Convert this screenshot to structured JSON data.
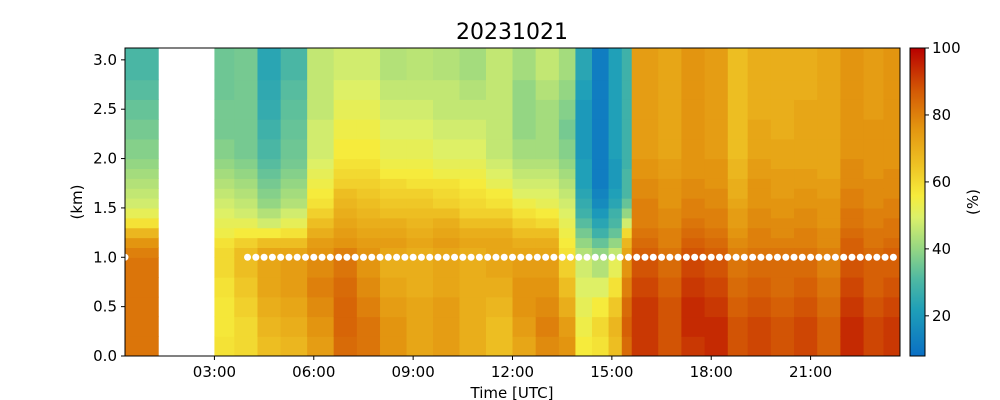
{
  "chart_data": {
    "type": "heatmap",
    "title": "20231021",
    "xlabel": "Time [UTC]",
    "ylabel": "(km)",
    "colorbar_label": "(%)",
    "x_ticks": [
      "03:00",
      "06:00",
      "09:00",
      "12:00",
      "15:00",
      "18:00",
      "21:00"
    ],
    "x_tick_hours": [
      3,
      6,
      9,
      12,
      15,
      18,
      21
    ],
    "y_ticks": [
      "0.0",
      "0.5",
      "1.0",
      "1.5",
      "2.0",
      "2.5",
      "3.0"
    ],
    "y_tick_values": [
      0,
      0.5,
      1.0,
      1.5,
      2.0,
      2.5,
      3.0
    ],
    "colorbar_ticks": [
      "20",
      "40",
      "60",
      "80",
      "100"
    ],
    "colorbar_tick_values": [
      20,
      40,
      60,
      80,
      100
    ],
    "xlim_hours": [
      0.3,
      23.7
    ],
    "ylim_km": [
      0,
      3.12
    ],
    "clim": [
      8,
      100
    ],
    "colormap": "blue-teal-green-yellow-orange-red",
    "no_data_interval_hours": [
      1.3,
      3.0
    ],
    "marker_line": {
      "height_km": 1.0,
      "marker_color": "#ffffff",
      "start_hours": 4.0
    },
    "profile_layer_tops_km": [
      0.2,
      0.4,
      0.6,
      0.8,
      1.0,
      1.1,
      1.2,
      1.3,
      1.4,
      1.5,
      1.6,
      1.7,
      1.8,
      1.9,
      2.0,
      2.2,
      2.4,
      2.6,
      2.8,
      3.12
    ],
    "profiles": [
      {
        "start": 0.3,
        "end": 1.3,
        "v": [
          82,
          82,
          82,
          82,
          82,
          80,
          76,
          68,
          58,
          52,
          48,
          46,
          44,
          42,
          40,
          38,
          36,
          34,
          32,
          30
        ]
      },
      {
        "start": 3.0,
        "end": 3.6,
        "v": [
          58,
          57,
          57,
          58,
          60,
          60,
          58,
          54,
          52,
          50,
          48,
          46,
          44,
          42,
          40,
          38,
          36,
          36,
          35,
          35
        ]
      },
      {
        "start": 3.6,
        "end": 4.3,
        "v": [
          60,
          60,
          62,
          64,
          66,
          66,
          62,
          56,
          52,
          48,
          46,
          44,
          42,
          40,
          38,
          36,
          36,
          36,
          36,
          36
        ]
      },
      {
        "start": 4.3,
        "end": 5.0,
        "v": [
          66,
          68,
          70,
          72,
          72,
          72,
          66,
          56,
          48,
          44,
          40,
          38,
          36,
          34,
          32,
          30,
          28,
          26,
          25,
          24
        ]
      },
      {
        "start": 5.0,
        "end": 5.8,
        "v": [
          68,
          70,
          72,
          74,
          74,
          72,
          66,
          58,
          52,
          48,
          44,
          42,
          40,
          38,
          36,
          35,
          34,
          33,
          32,
          30
        ]
      },
      {
        "start": 5.8,
        "end": 6.6,
        "v": [
          74,
          76,
          78,
          80,
          78,
          76,
          74,
          70,
          66,
          62,
          58,
          56,
          54,
          52,
          50,
          48,
          48,
          46,
          46,
          46
        ]
      },
      {
        "start": 6.6,
        "end": 7.3,
        "v": [
          84,
          85,
          85,
          84,
          82,
          80,
          76,
          74,
          72,
          70,
          68,
          66,
          62,
          60,
          58,
          56,
          54,
          52,
          50,
          48
        ]
      },
      {
        "start": 7.3,
        "end": 8.0,
        "v": [
          82,
          82,
          80,
          78,
          76,
          76,
          74,
          72,
          70,
          68,
          66,
          64,
          62,
          60,
          58,
          56,
          54,
          52,
          50,
          48
        ]
      },
      {
        "start": 8.0,
        "end": 8.8,
        "v": [
          76,
          76,
          74,
          72,
          70,
          72,
          74,
          72,
          70,
          66,
          64,
          62,
          60,
          56,
          54,
          52,
          50,
          48,
          46,
          44
        ]
      },
      {
        "start": 8.8,
        "end": 9.6,
        "v": [
          72,
          72,
          72,
          70,
          70,
          70,
          72,
          70,
          68,
          66,
          64,
          62,
          58,
          56,
          54,
          52,
          50,
          48,
          46,
          45
        ]
      },
      {
        "start": 9.6,
        "end": 10.4,
        "v": [
          74,
          74,
          74,
          72,
          72,
          72,
          74,
          72,
          70,
          66,
          62,
          60,
          58,
          54,
          52,
          50,
          48,
          46,
          46,
          44
        ]
      },
      {
        "start": 10.4,
        "end": 11.2,
        "v": [
          70,
          70,
          70,
          70,
          70,
          70,
          72,
          70,
          66,
          62,
          60,
          58,
          56,
          54,
          52,
          50,
          48,
          46,
          44,
          42
        ]
      },
      {
        "start": 11.2,
        "end": 12.0,
        "v": [
          66,
          66,
          68,
          70,
          72,
          72,
          72,
          70,
          66,
          62,
          58,
          56,
          52,
          50,
          48,
          46,
          46,
          46,
          46,
          46
        ]
      },
      {
        "start": 12.0,
        "end": 12.7,
        "v": [
          72,
          74,
          76,
          76,
          74,
          72,
          70,
          66,
          62,
          58,
          54,
          50,
          48,
          46,
          44,
          42,
          40,
          40,
          40,
          42
        ]
      },
      {
        "start": 12.7,
        "end": 13.4,
        "v": [
          78,
          80,
          78,
          76,
          74,
          72,
          70,
          66,
          60,
          56,
          52,
          50,
          48,
          46,
          44,
          42,
          42,
          42,
          44,
          46
        ]
      },
      {
        "start": 13.4,
        "end": 13.9,
        "v": [
          76,
          74,
          70,
          66,
          62,
          58,
          56,
          54,
          52,
          50,
          48,
          46,
          44,
          42,
          40,
          38,
          36,
          38,
          40,
          42
        ]
      },
      {
        "start": 13.9,
        "end": 14.4,
        "v": [
          56,
          54,
          52,
          50,
          48,
          44,
          40,
          36,
          32,
          28,
          26,
          24,
          22,
          22,
          22,
          20,
          20,
          20,
          22,
          24
        ]
      },
      {
        "start": 14.4,
        "end": 14.9,
        "v": [
          58,
          60,
          56,
          50,
          44,
          40,
          34,
          28,
          24,
          20,
          16,
          14,
          12,
          12,
          12,
          12,
          12,
          12,
          12,
          12
        ]
      },
      {
        "start": 14.9,
        "end": 15.3,
        "v": [
          66,
          68,
          64,
          58,
          52,
          46,
          40,
          34,
          30,
          28,
          24,
          22,
          20,
          20,
          20,
          22,
          22,
          22,
          22,
          22
        ]
      },
      {
        "start": 15.3,
        "end": 15.6,
        "v": [
          84,
          86,
          84,
          80,
          76,
          72,
          68,
          60,
          48,
          40,
          34,
          30,
          30,
          30,
          28,
          28,
          28,
          28,
          28,
          28
        ]
      },
      {
        "start": 15.6,
        "end": 16.4,
        "v": [
          92,
          92,
          92,
          90,
          88,
          86,
          84,
          82,
          80,
          80,
          80,
          78,
          78,
          76,
          76,
          74,
          74,
          74,
          74,
          74
        ]
      },
      {
        "start": 16.4,
        "end": 17.1,
        "v": [
          88,
          88,
          88,
          86,
          84,
          82,
          80,
          80,
          78,
          78,
          76,
          76,
          76,
          74,
          74,
          72,
          72,
          72,
          72,
          72
        ]
      },
      {
        "start": 17.1,
        "end": 17.8,
        "v": [
          92,
          94,
          94,
          92,
          90,
          88,
          86,
          84,
          82,
          80,
          80,
          78,
          78,
          76,
          76,
          76,
          76,
          76,
          76,
          76
        ]
      },
      {
        "start": 17.8,
        "end": 18.5,
        "v": [
          94,
          94,
          92,
          90,
          88,
          86,
          84,
          82,
          80,
          80,
          78,
          78,
          76,
          76,
          76,
          74,
          74,
          74,
          74,
          74
        ]
      },
      {
        "start": 18.5,
        "end": 19.1,
        "v": [
          88,
          88,
          86,
          84,
          82,
          80,
          78,
          76,
          74,
          74,
          72,
          70,
          70,
          68,
          68,
          66,
          66,
          66,
          66,
          66
        ]
      },
      {
        "start": 19.1,
        "end": 19.8,
        "v": [
          90,
          90,
          88,
          86,
          84,
          82,
          80,
          80,
          78,
          78,
          76,
          76,
          76,
          74,
          74,
          72,
          72,
          70,
          70,
          70
        ]
      },
      {
        "start": 19.8,
        "end": 20.5,
        "v": [
          88,
          88,
          86,
          84,
          84,
          82,
          80,
          78,
          78,
          76,
          76,
          74,
          74,
          74,
          72,
          72,
          70,
          70,
          70,
          70
        ]
      },
      {
        "start": 20.5,
        "end": 21.2,
        "v": [
          90,
          90,
          88,
          86,
          84,
          82,
          80,
          80,
          78,
          78,
          76,
          76,
          74,
          74,
          72,
          72,
          72,
          72,
          70,
          70
        ]
      },
      {
        "start": 21.2,
        "end": 21.9,
        "v": [
          86,
          86,
          84,
          82,
          80,
          80,
          78,
          78,
          76,
          76,
          76,
          74,
          74,
          72,
          72,
          72,
          72,
          72,
          72,
          72
        ]
      },
      {
        "start": 21.9,
        "end": 22.6,
        "v": [
          94,
          94,
          92,
          90,
          88,
          86,
          86,
          84,
          82,
          82,
          80,
          80,
          78,
          78,
          78,
          76,
          76,
          76,
          76,
          76
        ]
      },
      {
        "start": 22.6,
        "end": 23.2,
        "v": [
          90,
          90,
          88,
          86,
          86,
          84,
          82,
          82,
          80,
          80,
          78,
          78,
          78,
          76,
          76,
          76,
          76,
          74,
          74,
          74
        ]
      },
      {
        "start": 23.2,
        "end": 23.7,
        "v": [
          92,
          92,
          90,
          88,
          86,
          86,
          84,
          82,
          82,
          80,
          80,
          78,
          78,
          78,
          76,
          76,
          76,
          76,
          76,
          76
        ]
      }
    ]
  }
}
